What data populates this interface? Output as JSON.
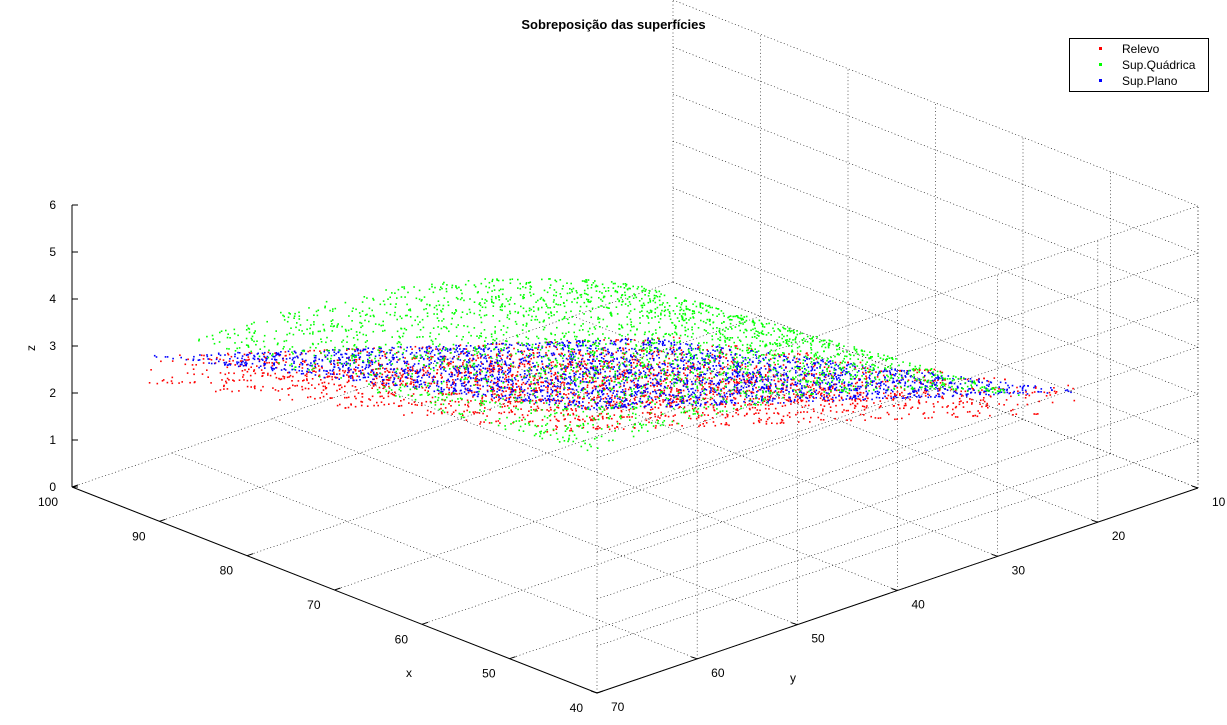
{
  "chart_data": {
    "type": "scatter",
    "title": "Sobreposição das superfícies",
    "xlabel": "x",
    "ylabel": "y",
    "zlabel": "z",
    "xlim": [
      40,
      100
    ],
    "ylim": [
      10,
      70
    ],
    "zlim": [
      0,
      6
    ],
    "x_ticks": [
      "40",
      "50",
      "60",
      "70",
      "80",
      "90",
      "100"
    ],
    "y_ticks": [
      "10",
      "20",
      "30",
      "40",
      "50",
      "60",
      "70"
    ],
    "z_ticks": [
      "0",
      "1",
      "2",
      "3",
      "4",
      "5",
      "6"
    ],
    "grid": true,
    "legend_position": "top-right",
    "series": [
      {
        "name": "Relevo",
        "color": "#ff0000",
        "marker": "."
      },
      {
        "name": "Sup.Quádrica",
        "color": "#00ff00",
        "marker": "."
      },
      {
        "name": "Sup.Plano",
        "color": "#0000ff",
        "marker": "."
      }
    ]
  }
}
